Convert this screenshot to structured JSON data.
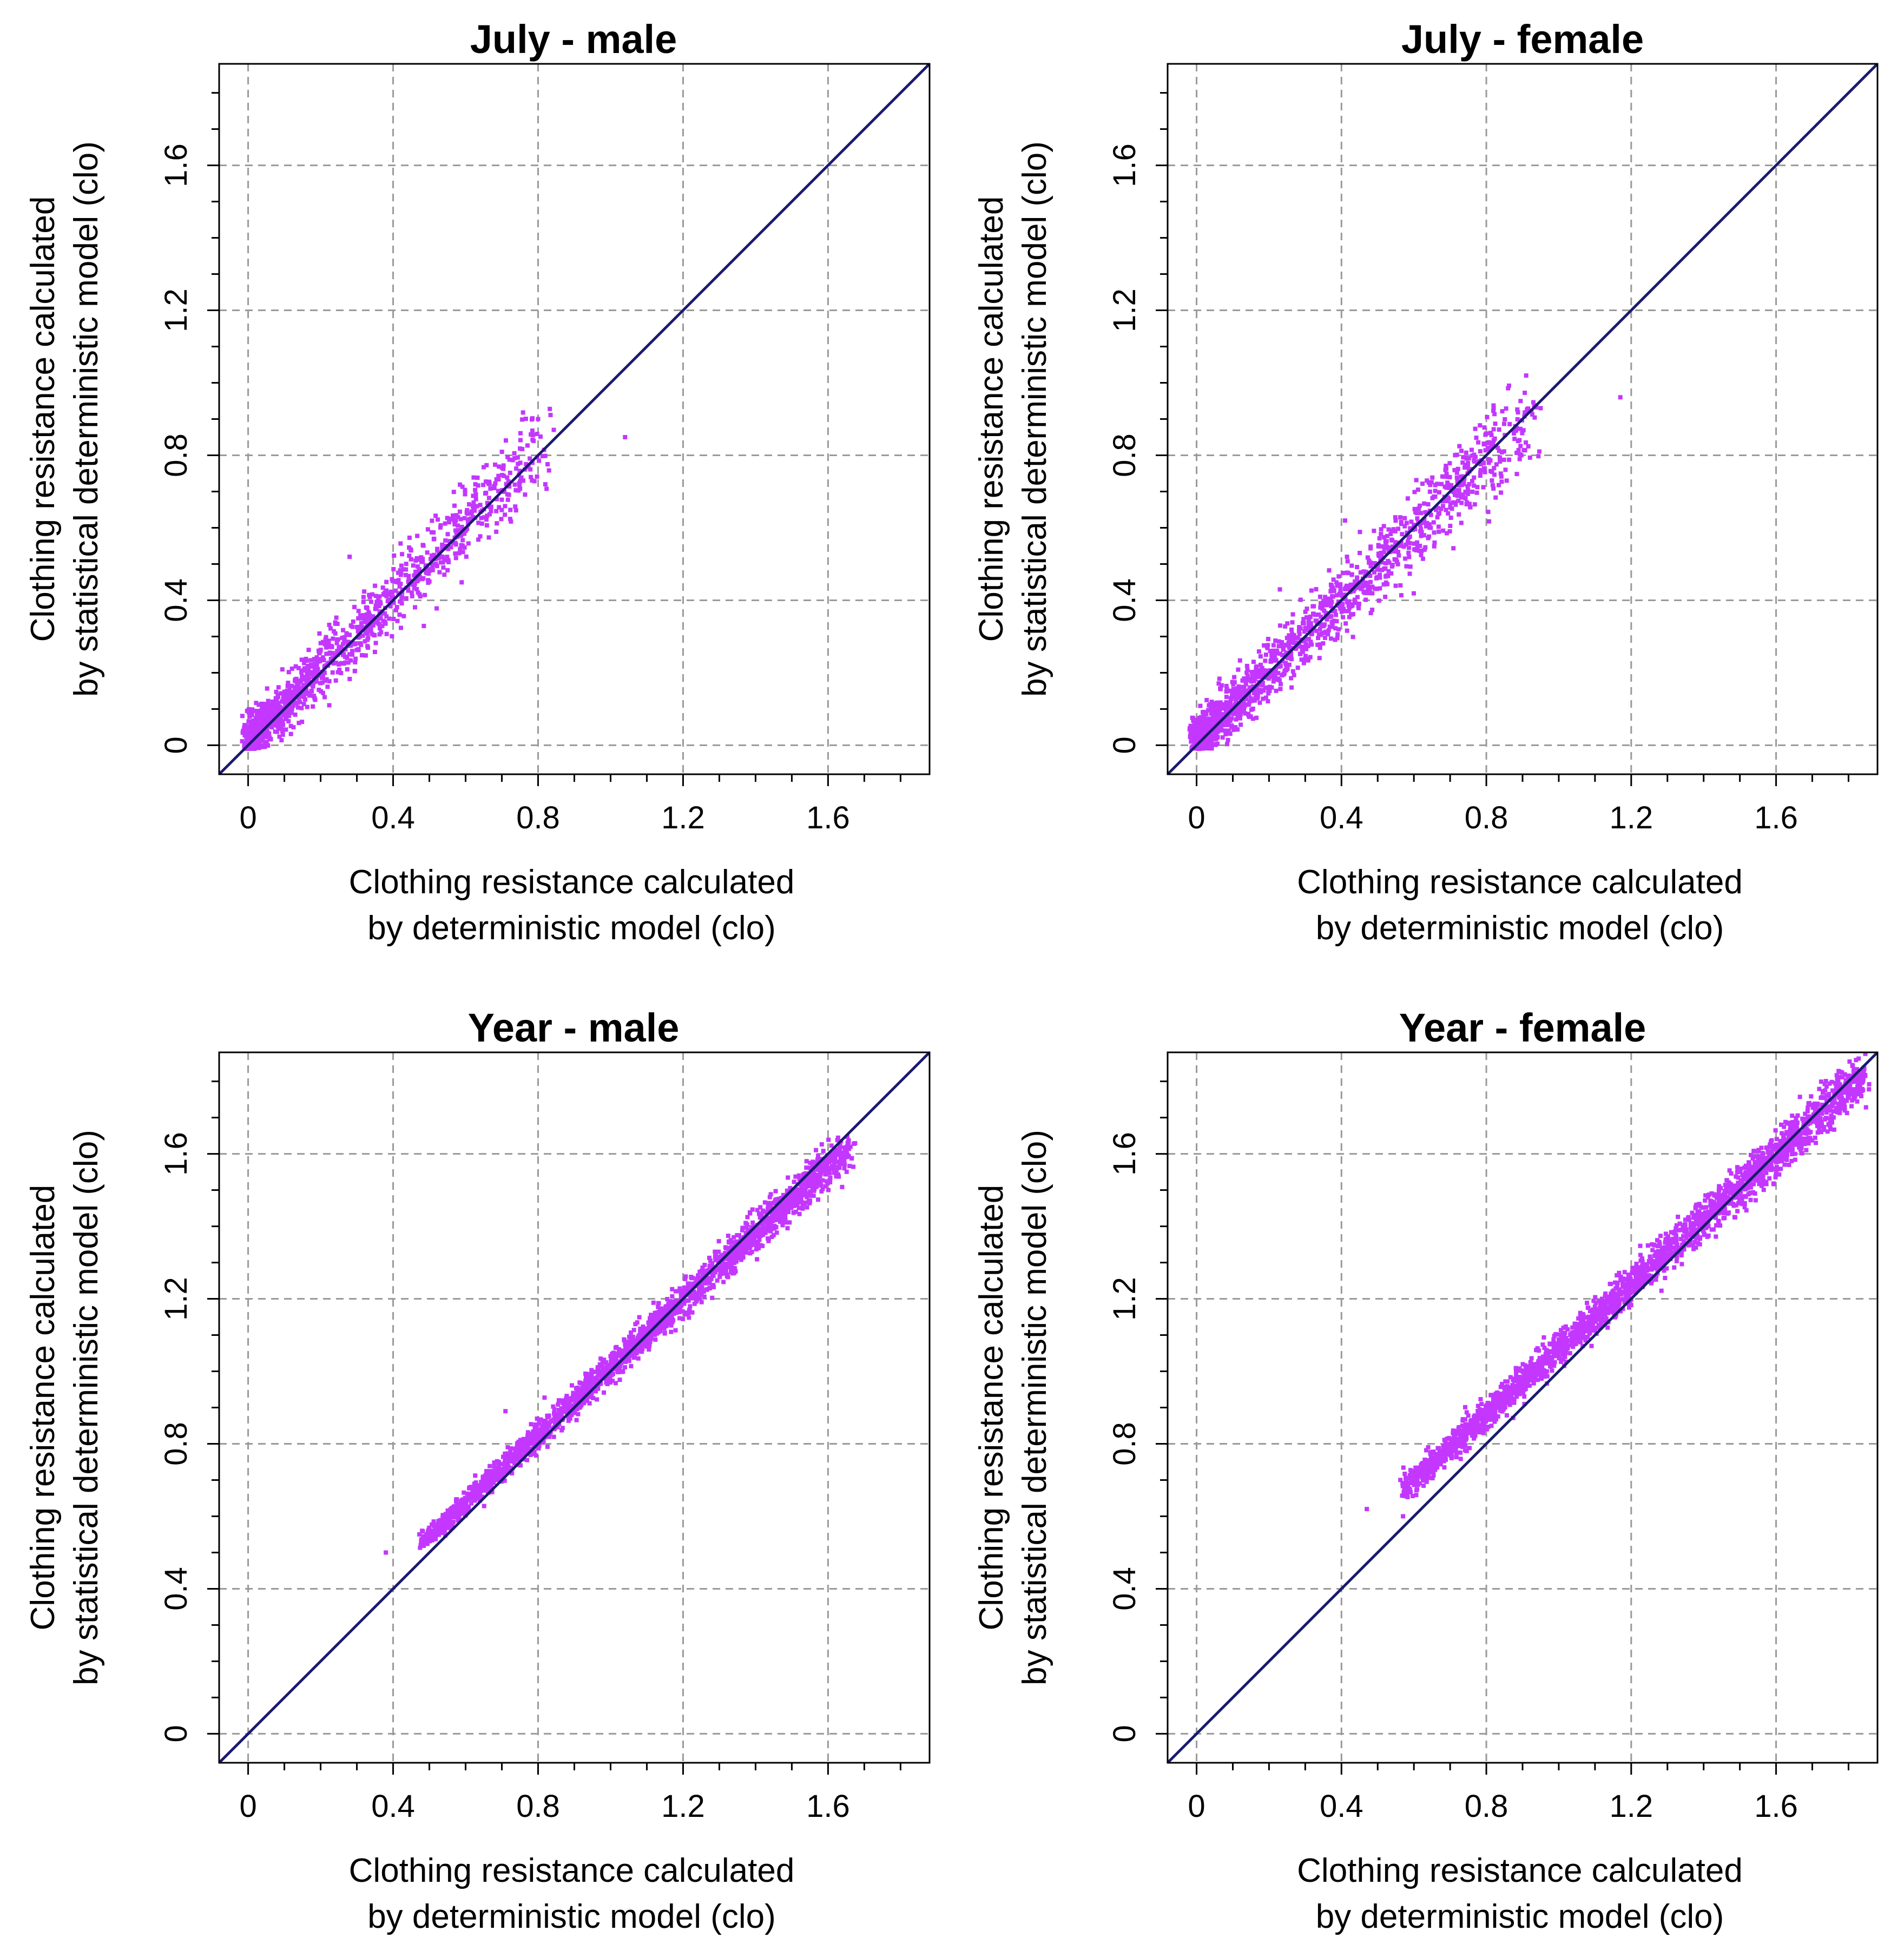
{
  "figure": {
    "colors": {
      "point": "#c337ff",
      "identity_line": "#1a1a6e",
      "grid": "#9a9a9a",
      "axis": "#000000"
    }
  },
  "chart_data": [
    {
      "type": "scatter",
      "title": "July - male",
      "xlabel": [
        "Clothing resistance calculated",
        "by deterministic model (clo)"
      ],
      "ylabel": [
        "Clothing resistance calculated",
        "by statistical deterministic model (clo)"
      ],
      "xlim": [
        -0.08,
        1.88
      ],
      "ylim": [
        -0.08,
        1.88
      ],
      "ticks": [
        0,
        0.4,
        0.8,
        1.2,
        1.6
      ],
      "tick_labels": [
        "0",
        "0.4",
        "0.8",
        "1.2",
        "1.6"
      ],
      "grid": true,
      "reference_line": "y = x",
      "cloud": {
        "x_range": [
          0.0,
          0.82
        ],
        "slope": 1.0,
        "intercept": 0.01,
        "spread": 0.045,
        "count": 1300,
        "skew": 2.2
      },
      "outliers": [
        [
          0.8,
          0.9
        ],
        [
          1.04,
          0.85
        ],
        [
          0.78,
          0.74
        ],
        [
          0.82,
          0.72
        ],
        [
          0.35,
          0.44
        ],
        [
          0.28,
          0.52
        ],
        [
          0.62,
          0.66
        ]
      ]
    },
    {
      "type": "scatter",
      "title": "July - female",
      "xlabel": [
        "Clothing resistance calculated",
        "by deterministic model (clo)"
      ],
      "ylabel": [
        "Clothing resistance calculated",
        "by statistical deterministic model (clo)"
      ],
      "xlim": [
        -0.08,
        1.88
      ],
      "ylim": [
        -0.08,
        1.88
      ],
      "ticks": [
        0,
        0.4,
        0.8,
        1.2,
        1.6
      ],
      "tick_labels": [
        "0",
        "0.4",
        "0.8",
        "1.2",
        "1.6"
      ],
      "grid": true,
      "reference_line": "y = x",
      "cloud": {
        "x_range": [
          0.0,
          0.92
        ],
        "slope": 0.97,
        "intercept": 0.01,
        "spread": 0.045,
        "count": 1500,
        "skew": 2.0
      },
      "outliers": [
        [
          0.91,
          1.02
        ],
        [
          1.17,
          0.96
        ],
        [
          0.95,
          0.93
        ],
        [
          0.88,
          0.88
        ],
        [
          0.8,
          0.86
        ],
        [
          0.41,
          0.62
        ],
        [
          0.23,
          0.43
        ]
      ]
    },
    {
      "type": "scatter",
      "title": "Year - male",
      "xlabel": [
        "Clothing resistance calculated",
        "by deterministic model (clo)"
      ],
      "ylabel": [
        "Clothing resistance calculated",
        "by statistical deterministic model (clo)"
      ],
      "xlim": [
        -0.08,
        1.88
      ],
      "ylim": [
        -0.08,
        1.88
      ],
      "ticks": [
        0,
        0.4,
        0.8,
        1.2,
        1.6
      ],
      "tick_labels": [
        "0",
        "0.4",
        "0.8",
        "1.2",
        "1.6"
      ],
      "grid": true,
      "reference_line": "y = x",
      "cloud": {
        "x_range": [
          0.48,
          1.66
        ],
        "slope": 0.93,
        "intercept": 0.08,
        "spread": 0.022,
        "count": 2200,
        "skew": 1.0
      },
      "outliers": [
        [
          0.38,
          0.5
        ],
        [
          0.48,
          0.56
        ],
        [
          0.71,
          0.89
        ],
        [
          1.63,
          1.61
        ],
        [
          1.55,
          1.52
        ]
      ]
    },
    {
      "type": "scatter",
      "title": "Year - female",
      "xlabel": [
        "Clothing resistance calculated",
        "by deterministic model (clo)"
      ],
      "ylabel": [
        "Clothing resistance calculated",
        "by statistical deterministic model (clo)"
      ],
      "xlim": [
        -0.08,
        1.88
      ],
      "ylim": [
        -0.08,
        1.88
      ],
      "ticks": [
        0,
        0.4,
        0.8,
        1.2,
        1.6
      ],
      "tick_labels": [
        "0",
        "0.4",
        "0.8",
        "1.2",
        "1.6"
      ],
      "grid": true,
      "reference_line": "y = x",
      "cloud": {
        "x_range": [
          0.57,
          1.84
        ],
        "slope": 0.9,
        "intercept": 0.16,
        "spread": 0.025,
        "count": 2400,
        "skew": 1.0
      },
      "outliers": [
        [
          0.47,
          0.62
        ],
        [
          0.57,
          0.6
        ],
        [
          1.84,
          1.8
        ],
        [
          1.8,
          1.78
        ]
      ]
    }
  ]
}
